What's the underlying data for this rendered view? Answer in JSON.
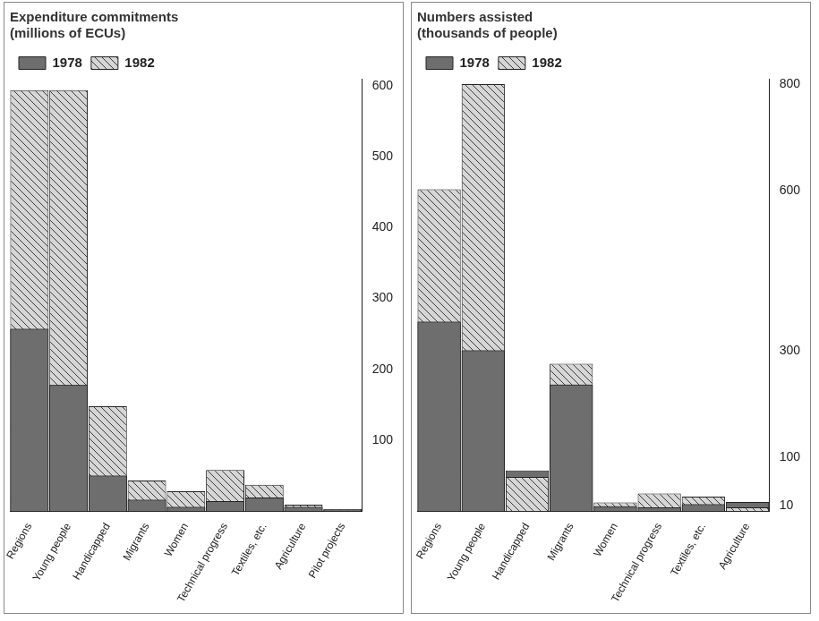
{
  "chart_data": [
    {
      "type": "bar",
      "title": "Expenditure commitments (millions of ECUs)",
      "categories": [
        "Regions",
        "Young people",
        "Handicapped",
        "Migrants",
        "Women",
        "Technical progress",
        "Textiles, etc.",
        "Agriculture",
        "Pilot projects"
      ],
      "series": [
        {
          "name": "1978",
          "color": "#6e6e6e",
          "values": [
            257,
            178,
            50,
            16,
            6,
            14,
            19,
            6,
            2
          ]
        },
        {
          "name": "1982",
          "color": "#d6d6d6",
          "values": [
            594,
            594,
            148,
            43,
            28,
            58,
            37,
            9,
            3
          ]
        }
      ],
      "ylim": [
        0,
        610
      ],
      "yticks": [
        100,
        200,
        300,
        400,
        500,
        600
      ],
      "grid": false,
      "legend": "top"
    },
    {
      "type": "bar",
      "title": "Numbers assisted (thousands of people)",
      "categories": [
        "Regions",
        "Young people",
        "Handicapped",
        "Migrants",
        "Women",
        "Technical progress",
        "Textiles, etc.",
        "Agriculture"
      ],
      "series": [
        {
          "name": "1978",
          "color": "#6e6e6e",
          "values": [
            355,
            301,
            76,
            237,
            9,
            7,
            13,
            17
          ]
        },
        {
          "name": "1982",
          "color": "#d6d6d6",
          "values": [
            603,
            800,
            64,
            276,
            16,
            33,
            27,
            7
          ]
        }
      ],
      "ylim": [
        0,
        810
      ],
      "yticks": [
        10,
        100,
        300,
        600,
        800
      ],
      "grid": false,
      "legend": "top"
    }
  ]
}
